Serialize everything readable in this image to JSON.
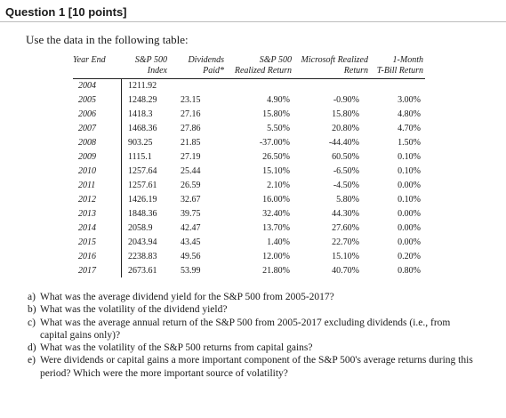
{
  "question": {
    "title": "Question 1 [10 points]",
    "intro": "Use the data in the following table:"
  },
  "table": {
    "headers": {
      "year": "Year End",
      "index": [
        "S&P 500",
        "Index"
      ],
      "dividends": [
        "Dividends",
        "Paid*"
      ],
      "sp_return": [
        "S&P 500",
        "Realized Return"
      ],
      "ms_return": [
        "Microsoft Realized",
        "Return"
      ],
      "tbill": [
        "1-Month",
        "T-Bill Return"
      ]
    },
    "rows": [
      {
        "year": "2004",
        "index": "1211.92",
        "dividends": "",
        "sp": "",
        "ms": "",
        "tb": ""
      },
      {
        "year": "2005",
        "index": "1248.29",
        "dividends": "23.15",
        "sp": "4.90%",
        "ms": "-0.90%",
        "tb": "3.00%"
      },
      {
        "year": "2006",
        "index": "1418.3",
        "dividends": "27.16",
        "sp": "15.80%",
        "ms": "15.80%",
        "tb": "4.80%"
      },
      {
        "year": "2007",
        "index": "1468.36",
        "dividends": "27.86",
        "sp": "5.50%",
        "ms": "20.80%",
        "tb": "4.70%"
      },
      {
        "year": "2008",
        "index": "903.25",
        "dividends": "21.85",
        "sp": "-37.00%",
        "ms": "-44.40%",
        "tb": "1.50%"
      },
      {
        "year": "2009",
        "index": "1115.1",
        "dividends": "27.19",
        "sp": "26.50%",
        "ms": "60.50%",
        "tb": "0.10%"
      },
      {
        "year": "2010",
        "index": "1257.64",
        "dividends": "25.44",
        "sp": "15.10%",
        "ms": "-6.50%",
        "tb": "0.10%"
      },
      {
        "year": "2011",
        "index": "1257.61",
        "dividends": "26.59",
        "sp": "2.10%",
        "ms": "-4.50%",
        "tb": "0.00%"
      },
      {
        "year": "2012",
        "index": "1426.19",
        "dividends": "32.67",
        "sp": "16.00%",
        "ms": "5.80%",
        "tb": "0.10%"
      },
      {
        "year": "2013",
        "index": "1848.36",
        "dividends": "39.75",
        "sp": "32.40%",
        "ms": "44.30%",
        "tb": "0.00%"
      },
      {
        "year": "2014",
        "index": "2058.9",
        "dividends": "42.47",
        "sp": "13.70%",
        "ms": "27.60%",
        "tb": "0.00%"
      },
      {
        "year": "2015",
        "index": "2043.94",
        "dividends": "43.45",
        "sp": "1.40%",
        "ms": "22.70%",
        "tb": "0.00%"
      },
      {
        "year": "2016",
        "index": "2238.83",
        "dividends": "49.56",
        "sp": "12.00%",
        "ms": "15.10%",
        "tb": "0.20%"
      },
      {
        "year": "2017",
        "index": "2673.61",
        "dividends": "53.99",
        "sp": "21.80%",
        "ms": "40.70%",
        "tb": "0.80%"
      }
    ]
  },
  "questions": [
    {
      "label": "a)",
      "text": "What was the average dividend yield for the S&P 500 from 2005-2017?"
    },
    {
      "label": "b)",
      "text": "What was the volatility of the dividend yield?"
    },
    {
      "label": "c)",
      "text": "What was the average annual return of the S&P 500 from 2005-2017 excluding dividends (i.e., from capital gains only)?"
    },
    {
      "label": "d)",
      "text": "What was the volatility of the S&P 500 returns from capital gains?"
    },
    {
      "label": "e)",
      "text": "Were dividends or capital gains a more important component of the S&P 500's average returns during this period? Which were the more important source of volatility?"
    }
  ]
}
